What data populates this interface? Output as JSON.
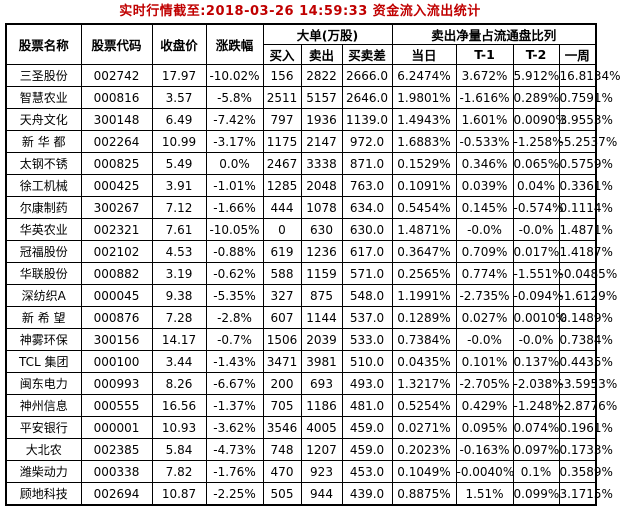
{
  "title": "实时行情截至:2018-03-26 14:59:33 资金流入流出统计",
  "colors": {
    "title_red": "#c00000",
    "stock_link_blue": "#1a679c",
    "border_black": "#000000",
    "background": "#ffffff"
  },
  "table": {
    "header": {
      "stock_name": "股票名称",
      "stock_code": "股票代码",
      "close_price": "收盘价",
      "change_pct": "涨跌幅",
      "large_order_group": "大单(万股)",
      "buy": "买入",
      "sell": "卖出",
      "buy_sell_diff": "买卖差",
      "net_sell_ratio_group": "卖出净量占流通盘比列",
      "today": "当日",
      "t_minus_1": "T-1",
      "t_minus_2": "T-2",
      "week": "一周"
    },
    "rows": [
      [
        "三圣股份",
        "002742",
        "17.97",
        "-10.02%",
        "156",
        "2822",
        "2666.0",
        "6.2474%",
        "3.672%",
        "5.912%",
        "16.8134%"
      ],
      [
        "智慧农业",
        "000816",
        "3.57",
        "-5.8%",
        "2511",
        "5157",
        "2646.0",
        "1.9801%",
        "-1.616%",
        "0.289%",
        "0.7591%"
      ],
      [
        "天舟文化",
        "300148",
        "6.49",
        "-7.42%",
        "797",
        "1936",
        "1139.0",
        "1.4943%",
        "1.601%",
        "0.0090%",
        "3.9553%"
      ],
      [
        "新 华 都",
        "002264",
        "10.99",
        "-3.17%",
        "1175",
        "2147",
        "972.0",
        "1.6883%",
        "-0.533%",
        "-1.258%",
        "-5.2537%"
      ],
      [
        "太钢不锈",
        "000825",
        "5.49",
        "0.0%",
        "2467",
        "3338",
        "871.0",
        "0.1529%",
        "0.346%",
        "0.065%",
        "0.5759%"
      ],
      [
        "徐工机械",
        "000425",
        "3.91",
        "-1.01%",
        "1285",
        "2048",
        "763.0",
        "0.1091%",
        "0.039%",
        "0.04%",
        "0.3361%"
      ],
      [
        "尔康制药",
        "300267",
        "7.12",
        "-1.66%",
        "444",
        "1078",
        "634.0",
        "0.5454%",
        "0.145%",
        "-0.574%",
        "0.1114%"
      ],
      [
        "华英农业",
        "002321",
        "7.61",
        "-10.05%",
        "0",
        "630",
        "630.0",
        "1.4871%",
        "-0.0%",
        "-0.0%",
        "1.4871%"
      ],
      [
        "冠福股份",
        "002102",
        "4.53",
        "-0.88%",
        "619",
        "1236",
        "617.0",
        "0.3647%",
        "0.709%",
        "0.017%",
        "1.4187%"
      ],
      [
        "华联股份",
        "000882",
        "3.19",
        "-0.62%",
        "588",
        "1159",
        "571.0",
        "0.2565%",
        "0.774%",
        "-1.551%",
        "-0.0485%"
      ],
      [
        "深纺织A",
        "000045",
        "9.38",
        "-5.35%",
        "327",
        "875",
        "548.0",
        "1.1991%",
        "-2.735%",
        "-0.094%",
        "-1.6129%"
      ],
      [
        "新 希 望",
        "000876",
        "7.28",
        "-2.8%",
        "607",
        "1144",
        "537.0",
        "0.1289%",
        "0.027%",
        "0.0010%",
        "0.1489%"
      ],
      [
        "神雾环保",
        "300156",
        "14.17",
        "-0.7%",
        "1506",
        "2039",
        "533.0",
        "0.7384%",
        "-0.0%",
        "-0.0%",
        "0.7384%"
      ],
      [
        "TCL 集团",
        "000100",
        "3.44",
        "-1.43%",
        "3471",
        "3981",
        "510.0",
        "0.0435%",
        "0.101%",
        "0.137%",
        "0.4435%"
      ],
      [
        "闽东电力",
        "000993",
        "8.26",
        "-6.67%",
        "200",
        "693",
        "493.0",
        "1.3217%",
        "-2.705%",
        "-2.038%",
        "-3.5953%"
      ],
      [
        "神州信息",
        "000555",
        "16.56",
        "-1.37%",
        "705",
        "1186",
        "481.0",
        "0.5254%",
        "0.429%",
        "-1.248%",
        "-2.8776%"
      ],
      [
        "平安银行",
        "000001",
        "10.93",
        "-3.62%",
        "3546",
        "4005",
        "459.0",
        "0.0271%",
        "0.095%",
        "0.074%",
        "0.1961%"
      ],
      [
        "大北农",
        "002385",
        "5.84",
        "-4.73%",
        "748",
        "1207",
        "459.0",
        "0.2023%",
        "-0.163%",
        "0.097%",
        "0.1733%"
      ],
      [
        "潍柴动力",
        "000338",
        "7.82",
        "-1.76%",
        "470",
        "923",
        "453.0",
        "0.1049%",
        "-0.0040%",
        "0.1%",
        "0.3589%"
      ],
      [
        "顾地科技",
        "002694",
        "10.87",
        "-2.25%",
        "505",
        "944",
        "439.0",
        "0.8875%",
        "1.51%",
        "0.099%",
        "3.1715%"
      ]
    ]
  }
}
